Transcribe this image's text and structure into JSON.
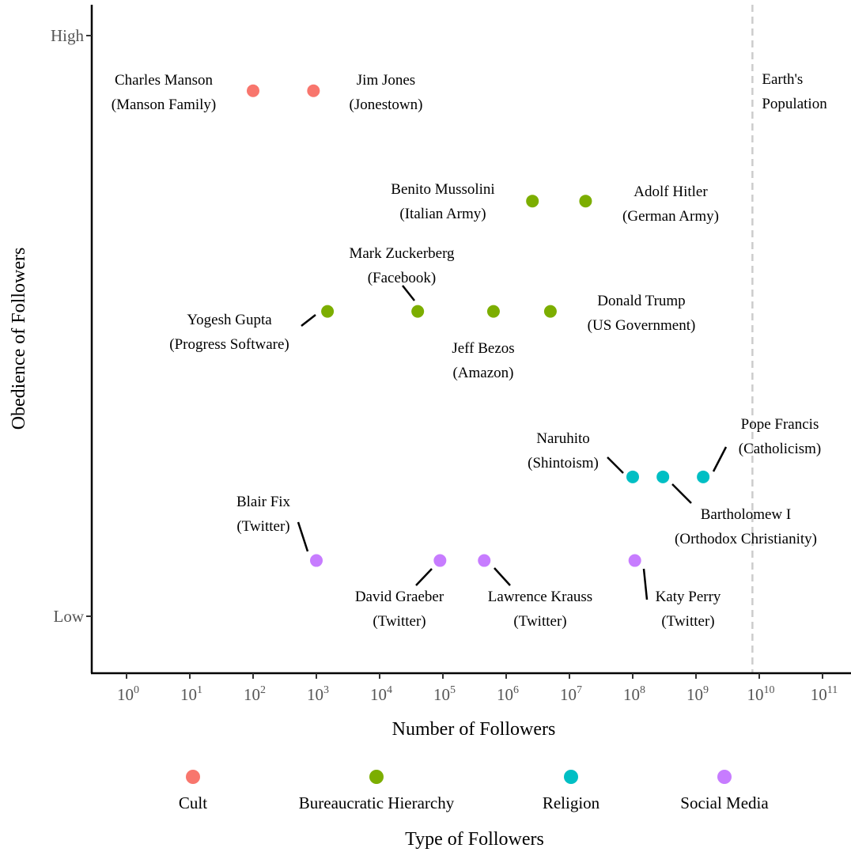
{
  "chart_data": {
    "type": "scatter",
    "xlabel": "Number of Followers",
    "ylabel": "Obedience of Followers",
    "x_scale": "log10",
    "x_ticks": [
      {
        "exp": 0,
        "base": "10",
        "sup": "0"
      },
      {
        "exp": 1,
        "base": "10",
        "sup": "1"
      },
      {
        "exp": 2,
        "base": "10",
        "sup": "2"
      },
      {
        "exp": 3,
        "base": "10",
        "sup": "3"
      },
      {
        "exp": 4,
        "base": "10",
        "sup": "4"
      },
      {
        "exp": 5,
        "base": "10",
        "sup": "5"
      },
      {
        "exp": 6,
        "base": "10",
        "sup": "6"
      },
      {
        "exp": 7,
        "base": "10",
        "sup": "7"
      },
      {
        "exp": 8,
        "base": "10",
        "sup": "8"
      },
      {
        "exp": 9,
        "base": "10",
        "sup": "9"
      },
      {
        "exp": 10,
        "base": "10",
        "sup": "10"
      },
      {
        "exp": 11,
        "base": "10",
        "sup": "11"
      }
    ],
    "y_ticks": [
      {
        "label": "High",
        "value": 1
      },
      {
        "label": "Low",
        "value": 0
      }
    ],
    "reference_line": {
      "label_lines": [
        "Earth's",
        "Population"
      ],
      "x": 7800000000
    },
    "legend": {
      "title": "Type of Followers",
      "position": "bottom",
      "items": [
        {
          "name": "Cult",
          "color": "#F8766D"
        },
        {
          "name": "Bureaucratic Hierarchy",
          "color": "#7CAE00"
        },
        {
          "name": "Religion",
          "color": "#00BFC4"
        },
        {
          "name": "Social Media",
          "color": "#C77CFF"
        }
      ]
    },
    "points": [
      {
        "lines": [
          "Charles Manson",
          "(Manson Family)"
        ],
        "type": "Cult",
        "x": 100,
        "y": 0.905
      },
      {
        "lines": [
          "Jim Jones",
          "(Jonestown)"
        ],
        "type": "Cult",
        "x": 900,
        "y": 0.905
      },
      {
        "lines": [
          "Benito Mussolini",
          "(Italian Army)"
        ],
        "type": "Bureaucratic Hierarchy",
        "x": 2600000,
        "y": 0.715
      },
      {
        "lines": [
          "Adolf Hitler",
          "(German Army)"
        ],
        "type": "Bureaucratic Hierarchy",
        "x": 18000000,
        "y": 0.715
      },
      {
        "lines": [
          "Yogesh Gupta",
          "(Progress Software)"
        ],
        "type": "Bureaucratic Hierarchy",
        "x": 1500,
        "y": 0.525
      },
      {
        "lines": [
          "Mark Zuckerberg",
          "(Facebook)"
        ],
        "type": "Bureaucratic Hierarchy",
        "x": 40000,
        "y": 0.525
      },
      {
        "lines": [
          "Jeff Bezos",
          "(Amazon)"
        ],
        "type": "Bureaucratic Hierarchy",
        "x": 630000,
        "y": 0.525
      },
      {
        "lines": [
          "Donald Trump",
          "(US Government)"
        ],
        "type": "Bureaucratic Hierarchy",
        "x": 5000000,
        "y": 0.525
      },
      {
        "lines": [
          "Naruhito",
          "(Shintoism)"
        ],
        "type": "Religion",
        "x": 100000000,
        "y": 0.24
      },
      {
        "lines": [
          "Bartholomew I",
          "(Orthodox Christianity)"
        ],
        "type": "Religion",
        "x": 300000000,
        "y": 0.24
      },
      {
        "lines": [
          "Pope Francis",
          "(Catholicism)"
        ],
        "type": "Religion",
        "x": 1300000000,
        "y": 0.24
      },
      {
        "lines": [
          "Blair Fix",
          "(Twitter)"
        ],
        "type": "Social Media",
        "x": 1000,
        "y": 0.096
      },
      {
        "lines": [
          "David Graeber",
          "(Twitter)"
        ],
        "type": "Social Media",
        "x": 90000,
        "y": 0.096
      },
      {
        "lines": [
          "Lawrence Krauss",
          "(Twitter)"
        ],
        "type": "Social Media",
        "x": 450000,
        "y": 0.096
      },
      {
        "lines": [
          "Katy Perry",
          "(Twitter)"
        ],
        "type": "Social Media",
        "x": 108000000,
        "y": 0.096
      }
    ]
  }
}
